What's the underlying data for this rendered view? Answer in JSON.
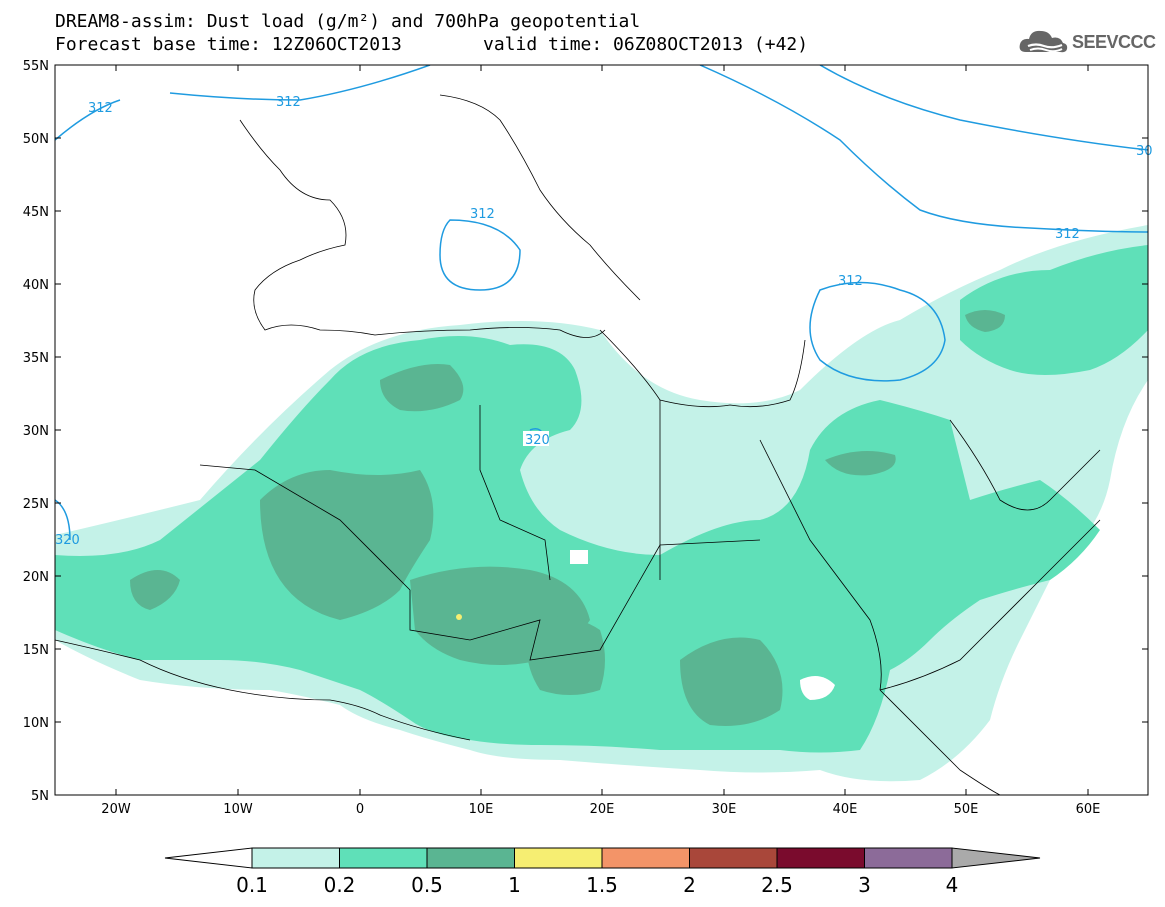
{
  "header": {
    "title_line1": "DREAM8-assim: Dust load (g/m²) and 700hPa geopotential",
    "base_time_label": "Forecast base time: 12Z06OCT2013",
    "valid_time_label": "valid time: 06Z08OCT2013 (+42)"
  },
  "logo": {
    "text": "SEEVCCC",
    "icon": "cloud-icon"
  },
  "map": {
    "lon_ticks": [
      "20W",
      "10W",
      "0",
      "10E",
      "20E",
      "30E",
      "40E",
      "50E",
      "60E"
    ],
    "lat_ticks": [
      "55N",
      "50N",
      "45N",
      "40N",
      "35N",
      "30N",
      "25N",
      "20N",
      "15N",
      "10N",
      "5N"
    ],
    "contour_labels": [
      "312",
      "312",
      "312",
      "312",
      "320",
      "30",
      "312",
      "320"
    ],
    "colors": {
      "land_border": "#000000",
      "contour": "#1f9be0",
      "level_01": "#c4f2e8",
      "level_02": "#5fe0b8",
      "level_05": "#5ab592",
      "level_1": "#f6ee72",
      "dust_point": "#f6ee72"
    }
  },
  "colorbar": {
    "labels": [
      "0.1",
      "0.2",
      "0.5",
      "1",
      "1.5",
      "2",
      "2.5",
      "3",
      "4"
    ],
    "colors": [
      "#c4f2e8",
      "#5fe0b8",
      "#5ab592",
      "#f6ee72",
      "#f39468",
      "#a9473a",
      "#7a0b2d",
      "#8c6b99"
    ],
    "under_color": "#ffffff",
    "over_color": "#aaaaaa"
  }
}
